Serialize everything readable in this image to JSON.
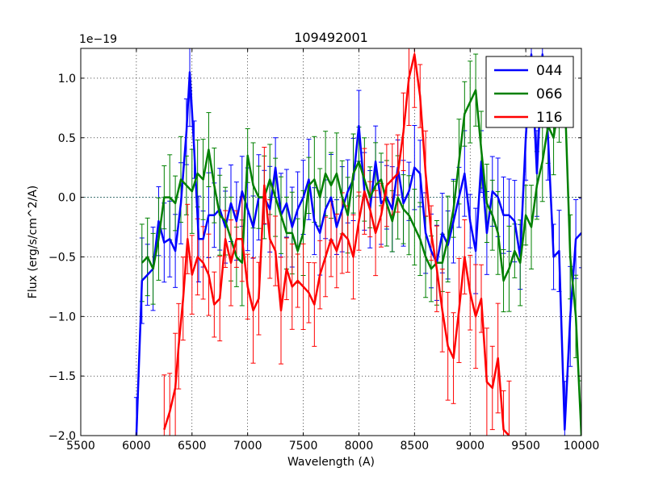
{
  "chart_data": {
    "type": "line",
    "title": "109492001",
    "xlabel": "Wavelength (A)",
    "ylabel": "Flux (erg/s/cm^2/A)",
    "y_offset_label": "1e−19",
    "xlim": [
      5500,
      10000
    ],
    "ylim": [
      -2.0,
      1.25
    ],
    "x_ticks": [
      5500,
      6000,
      6500,
      7000,
      7500,
      8000,
      8500,
      9000,
      9500,
      10000
    ],
    "x_tick_labels": [
      "5500",
      "6000",
      "6500",
      "7000",
      "7500",
      "8000",
      "8500",
      "9000",
      "9500",
      "10000"
    ],
    "y_ticks": [
      -2.0,
      -1.5,
      -1.0,
      -0.5,
      0.0,
      0.5,
      1.0
    ],
    "y_tick_labels": [
      "−2.0",
      "−1.5",
      "−1.0",
      "−0.5",
      "0.0",
      "0.5",
      "1.0"
    ],
    "grid": true,
    "legend_position": "top-right",
    "series": [
      {
        "name": "044",
        "color": "#0000ff",
        "x": [
          6000,
          6050,
          6100,
          6150,
          6200,
          6250,
          6300,
          6350,
          6400,
          6450,
          6480,
          6520,
          6560,
          6600,
          6650,
          6700,
          6750,
          6800,
          6850,
          6900,
          6950,
          7000,
          7050,
          7100,
          7150,
          7200,
          7250,
          7300,
          7350,
          7400,
          7450,
          7500,
          7550,
          7600,
          7650,
          7700,
          7750,
          7800,
          7850,
          7900,
          7950,
          8000,
          8050,
          8100,
          8150,
          8200,
          8250,
          8300,
          8350,
          8400,
          8450,
          8500,
          8550,
          8600,
          8650,
          8700,
          8750,
          8800,
          8850,
          8900,
          8950,
          9000,
          9050,
          9100,
          9150,
          9200,
          9250,
          9300,
          9350,
          9400,
          9450,
          9500,
          9550,
          9600,
          9650,
          9700,
          9750,
          9800,
          9850,
          9900,
          9950,
          10000
        ],
        "y": [
          -2.0,
          -0.7,
          -0.65,
          -0.6,
          -0.2,
          -0.38,
          -0.35,
          -0.45,
          -0.05,
          0.55,
          1.05,
          0.4,
          -0.35,
          -0.35,
          -0.15,
          -0.15,
          -0.1,
          -0.25,
          -0.05,
          -0.2,
          0.05,
          -0.1,
          -0.25,
          0.0,
          0.0,
          -0.1,
          0.25,
          -0.15,
          -0.05,
          -0.25,
          -0.1,
          0.0,
          0.15,
          -0.2,
          -0.3,
          -0.1,
          0.0,
          -0.25,
          -0.1,
          0.05,
          0.15,
          0.6,
          0.05,
          -0.1,
          0.3,
          -0.05,
          0.0,
          -0.1,
          0.25,
          -0.05,
          0.05,
          0.25,
          0.2,
          -0.3,
          -0.45,
          -0.55,
          -0.3,
          -0.4,
          -0.2,
          0.0,
          0.2,
          -0.2,
          -0.45,
          0.3,
          -0.3,
          0.05,
          0.0,
          -0.15,
          -0.15,
          -0.2,
          -0.5,
          0.5,
          1.2,
          0.2,
          1.2,
          0.5,
          -0.5,
          -0.45,
          -1.95,
          -1.0,
          -0.35,
          -0.3
        ]
      },
      {
        "name": "066",
        "color": "#008000",
        "x": [
          6050,
          6100,
          6150,
          6200,
          6250,
          6300,
          6350,
          6400,
          6450,
          6500,
          6550,
          6600,
          6650,
          6700,
          6750,
          6800,
          6850,
          6900,
          6950,
          7000,
          7050,
          7100,
          7150,
          7200,
          7250,
          7300,
          7350,
          7400,
          7450,
          7500,
          7550,
          7600,
          7650,
          7700,
          7750,
          7800,
          7850,
          7900,
          7950,
          8000,
          8050,
          8100,
          8150,
          8200,
          8250,
          8300,
          8350,
          8400,
          8450,
          8500,
          8550,
          8600,
          8650,
          8700,
          8750,
          8800,
          8850,
          8900,
          8950,
          9000,
          9050,
          9100,
          9150,
          9200,
          9250,
          9300,
          9350,
          9400,
          9450,
          9500,
          9550,
          9600,
          9650,
          9700,
          9750,
          9800,
          9850,
          9900,
          9950,
          10000
        ],
        "y": [
          -0.55,
          -0.5,
          -0.6,
          -0.35,
          0.0,
          0.0,
          -0.05,
          0.15,
          0.1,
          0.05,
          0.2,
          0.15,
          0.4,
          0.1,
          -0.15,
          -0.2,
          -0.35,
          -0.5,
          -0.55,
          0.35,
          0.1,
          0.0,
          0.0,
          0.15,
          0.0,
          -0.15,
          -0.3,
          -0.3,
          -0.45,
          -0.3,
          0.1,
          0.15,
          0.0,
          0.2,
          0.1,
          0.2,
          0.0,
          -0.15,
          0.2,
          0.3,
          0.15,
          0.0,
          0.1,
          0.15,
          -0.05,
          -0.2,
          0.0,
          -0.1,
          -0.15,
          -0.25,
          -0.35,
          -0.5,
          -0.6,
          -0.55,
          -0.55,
          -0.35,
          -0.1,
          0.3,
          0.7,
          0.8,
          0.9,
          0.4,
          -0.05,
          -0.15,
          -0.3,
          -0.7,
          -0.6,
          -0.45,
          -0.55,
          -0.15,
          -0.25,
          0.1,
          0.3,
          0.6,
          0.5,
          0.8,
          0.9,
          -0.5,
          -1.0,
          -2.0
        ]
      },
      {
        "name": "116",
        "color": "#ff0000",
        "x": [
          6250,
          6300,
          6350,
          6380,
          6420,
          6460,
          6500,
          6550,
          6600,
          6650,
          6700,
          6750,
          6800,
          6850,
          6900,
          6950,
          7000,
          7050,
          7100,
          7150,
          7200,
          7250,
          7300,
          7350,
          7400,
          7450,
          7500,
          7550,
          7600,
          7650,
          7700,
          7750,
          7800,
          7850,
          7900,
          7950,
          8000,
          8050,
          8100,
          8150,
          8200,
          8250,
          8300,
          8350,
          8400,
          8450,
          8500,
          8550,
          8600,
          8650,
          8700,
          8750,
          8800,
          8850,
          8900,
          8950,
          9000,
          9050,
          9100,
          9150,
          9200,
          9250,
          9300,
          9350
        ],
        "y": [
          -1.95,
          -1.8,
          -1.6,
          -1.25,
          -0.85,
          -0.35,
          -0.65,
          -0.5,
          -0.55,
          -0.65,
          -0.9,
          -0.85,
          -0.35,
          -0.55,
          -0.35,
          -0.35,
          -0.75,
          -0.95,
          -0.85,
          0.1,
          -0.35,
          -0.45,
          -0.95,
          -0.6,
          -0.75,
          -0.7,
          -0.75,
          -0.8,
          -0.9,
          -0.65,
          -0.5,
          -0.35,
          -0.45,
          -0.3,
          -0.35,
          -0.5,
          -0.2,
          0.05,
          -0.1,
          -0.3,
          -0.15,
          0.1,
          0.15,
          0.2,
          0.55,
          1.0,
          1.2,
          0.85,
          0.2,
          -0.3,
          -0.6,
          -0.95,
          -1.25,
          -1.35,
          -0.95,
          -0.5,
          -0.8,
          -1.0,
          -0.85,
          -1.55,
          -1.6,
          -1.35,
          -1.95,
          -2.0
        ]
      }
    ]
  }
}
